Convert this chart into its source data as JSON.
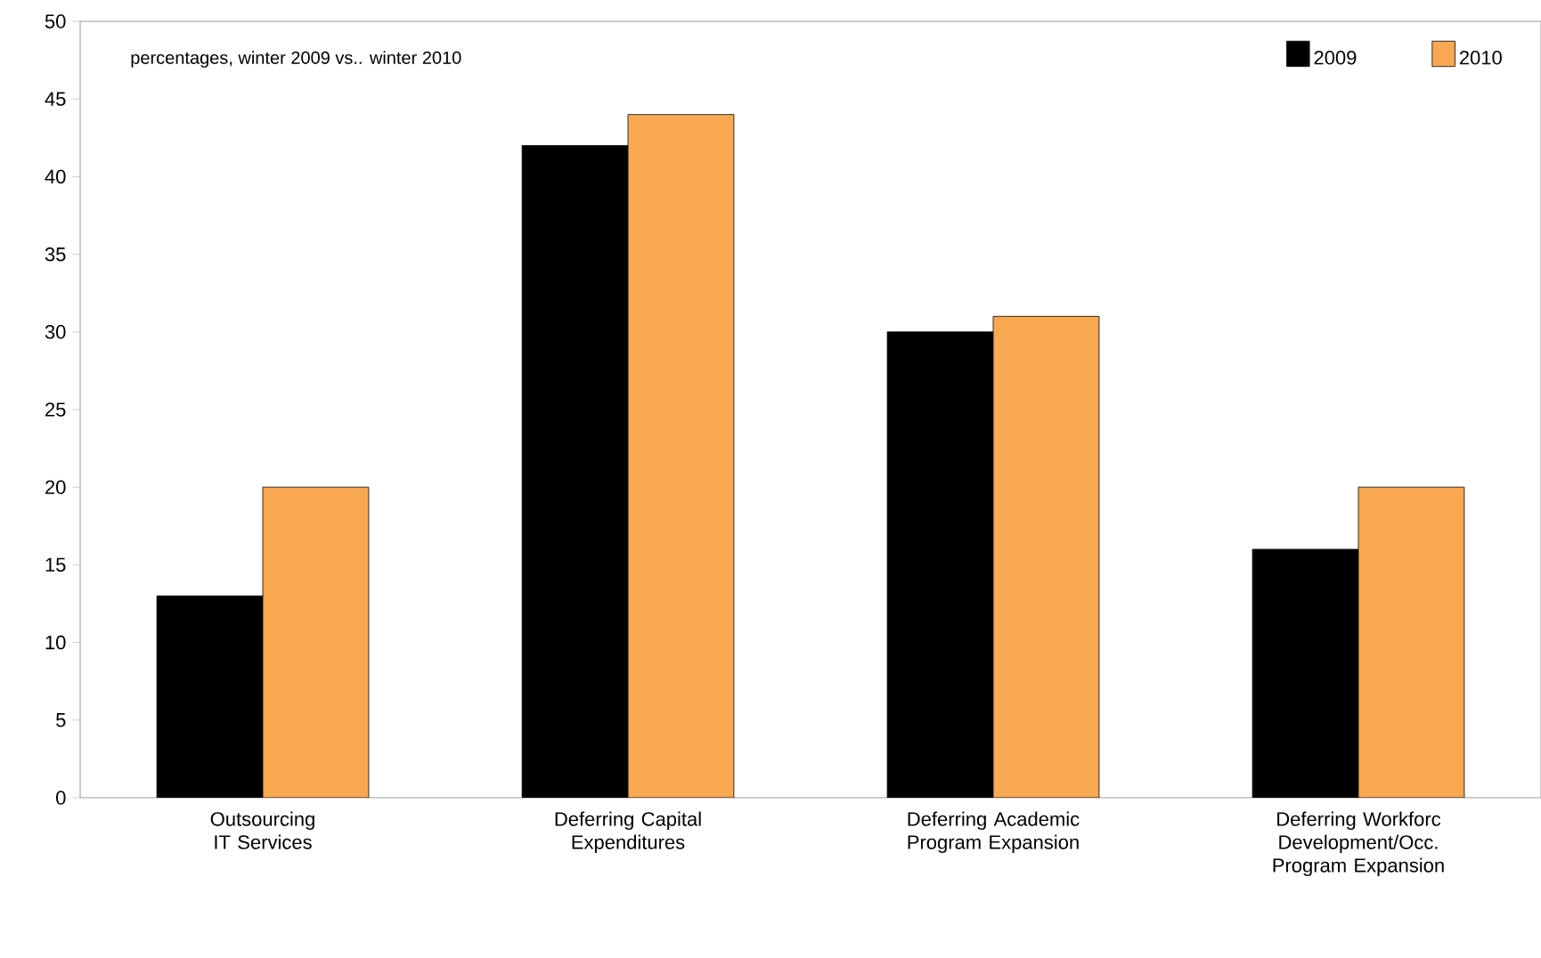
{
  "chart_data": {
    "type": "bar",
    "subtitle": "percentages, winter 2009 vs.. winter 2010",
    "categories": [
      "Outsourcing IT Services",
      "Deferring Capital Expenditures",
      "Deferring Academic Program Expansion",
      "Deferring Workforc Development/Occ. Program Expansion"
    ],
    "series": [
      {
        "name": "2009",
        "color": "#000000",
        "values": [
          13,
          42,
          30,
          16
        ]
      },
      {
        "name": "2010",
        "color": "#f9a852",
        "values": [
          20,
          44,
          31,
          20
        ]
      }
    ],
    "ylim": [
      0,
      50
    ],
    "yticks": [
      0,
      5,
      10,
      15,
      20,
      25,
      30,
      35,
      40,
      45,
      50
    ],
    "legend": "top right"
  }
}
